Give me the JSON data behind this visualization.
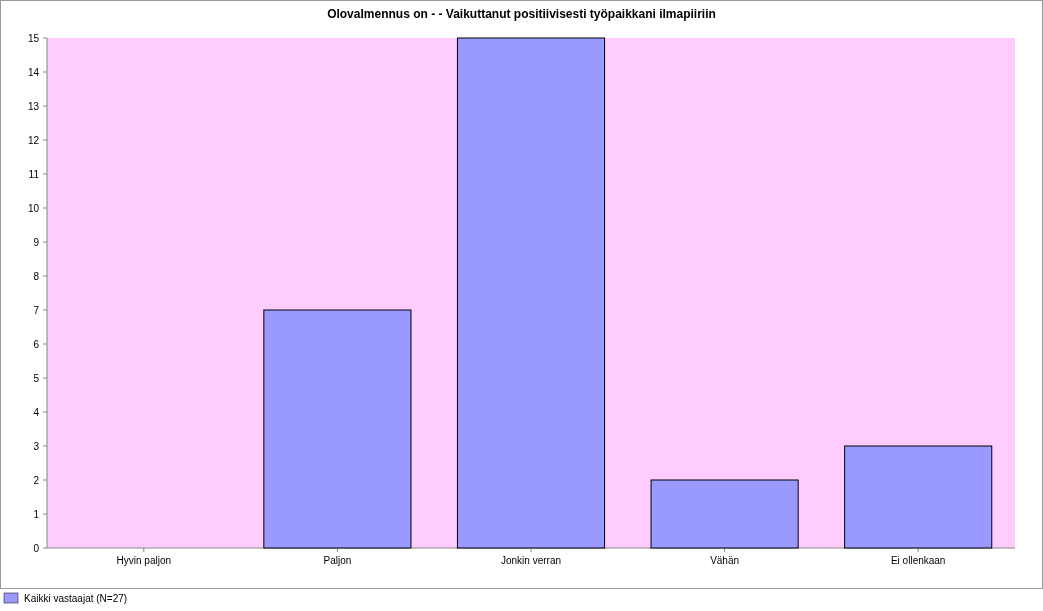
{
  "chart_data": {
    "type": "bar",
    "title": "Olovalmennus on -  - Vaikuttanut positiivisesti työpaikkani ilmapiiriin",
    "categories": [
      "Hyvin paljon",
      "Paljon",
      "Jonkin verran",
      "Vähän",
      "Ei ollenkaan"
    ],
    "series": [
      {
        "name": "Kaikki vastaajat (N=27)",
        "color": "#9999ff",
        "values": [
          0,
          7,
          15,
          2,
          3
        ]
      }
    ],
    "ylim": [
      0,
      15
    ],
    "yticks": [
      0,
      1,
      2,
      3,
      4,
      5,
      6,
      7,
      8,
      9,
      10,
      11,
      12,
      13,
      14,
      15
    ],
    "grid": false,
    "legend": "bottom left"
  }
}
